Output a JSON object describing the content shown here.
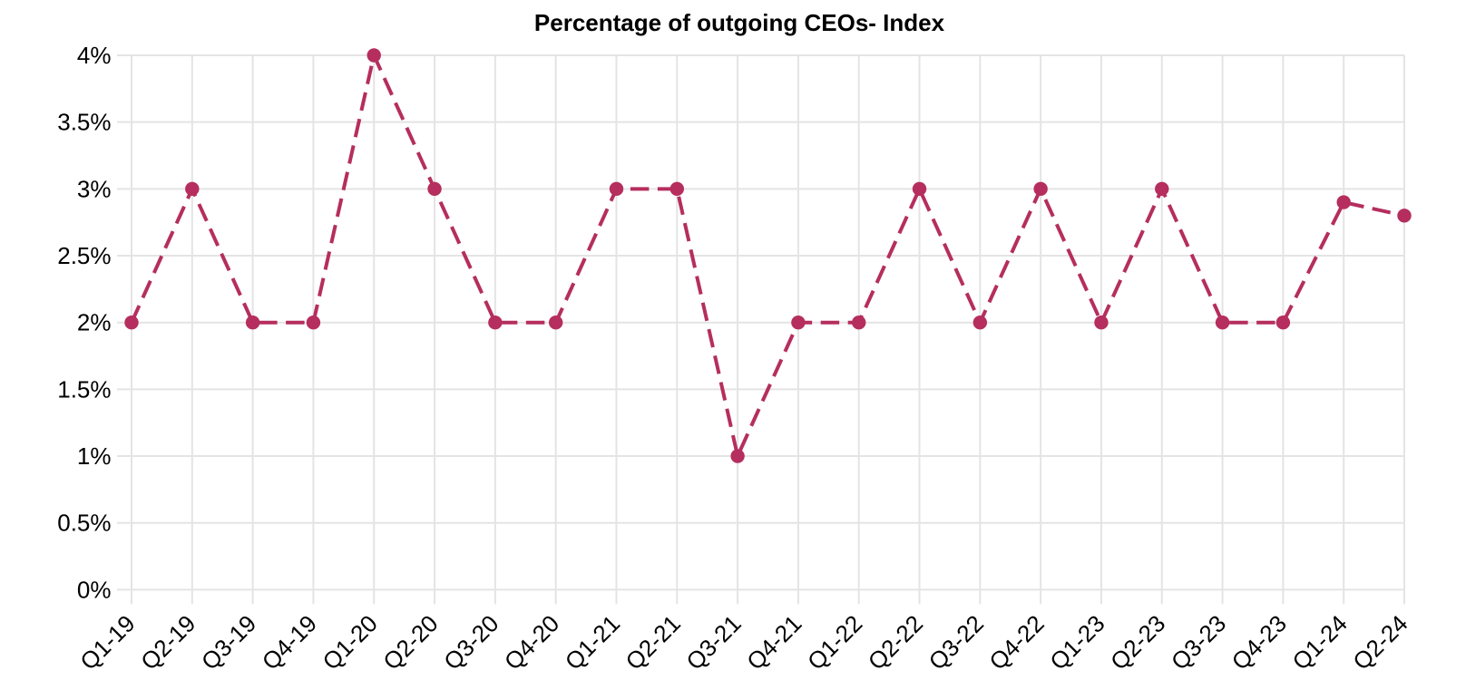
{
  "chart_data": {
    "type": "line",
    "title": "Percentage of outgoing CEOs- Index",
    "categories": [
      "Q1-19",
      "Q2-19",
      "Q3-19",
      "Q4-19",
      "Q1-20",
      "Q2-20",
      "Q3-20",
      "Q4-20",
      "Q1-21",
      "Q2-21",
      "Q3-21",
      "Q4-21",
      "Q1-22",
      "Q2-22",
      "Q3-22",
      "Q4-22",
      "Q1-23",
      "Q2-23",
      "Q3-23",
      "Q4-23",
      "Q1-24",
      "Q2-24"
    ],
    "series": [
      {
        "name": "Percentage of outgoing CEOs",
        "values": [
          2,
          3,
          2,
          2,
          4,
          3,
          2,
          2,
          3,
          3,
          1,
          2,
          2,
          3,
          2,
          3,
          2,
          3,
          2,
          2,
          2.9,
          2.8
        ]
      }
    ],
    "xlabel": "",
    "ylabel": "",
    "ylim": [
      0,
      4
    ],
    "y_tick_step": 0.5,
    "y_tick_labels": [
      "0%",
      "0.5%",
      "1%",
      "1.5%",
      "2%",
      "2.5%",
      "3%",
      "3.5%",
      "4%"
    ],
    "grid": true,
    "legend_position": "none",
    "line_style": "dashed",
    "marker": "circle",
    "colors": {
      "series": "#b52e5e",
      "grid": "#e4e4e4",
      "text": "#000000",
      "title": "#000000",
      "background": "#ffffff"
    }
  }
}
